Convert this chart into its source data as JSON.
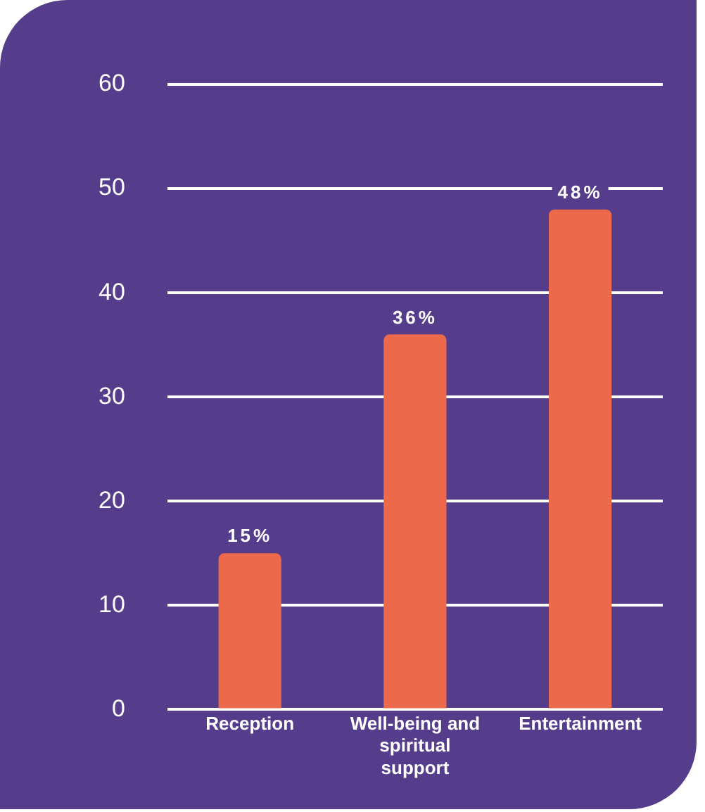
{
  "chart_data": {
    "type": "bar",
    "categories": [
      "Reception",
      "Well-being and spiritual support",
      "Entertainment"
    ],
    "values": [
      15,
      36,
      48
    ],
    "color": "#ec6a4b",
    "value_labels": [
      "15%",
      "36%",
      "48%"
    ],
    "ylim": [
      0,
      60
    ],
    "yticks": [
      0,
      10,
      20,
      30,
      40,
      50,
      60
    ],
    "grid": "y"
  }
}
